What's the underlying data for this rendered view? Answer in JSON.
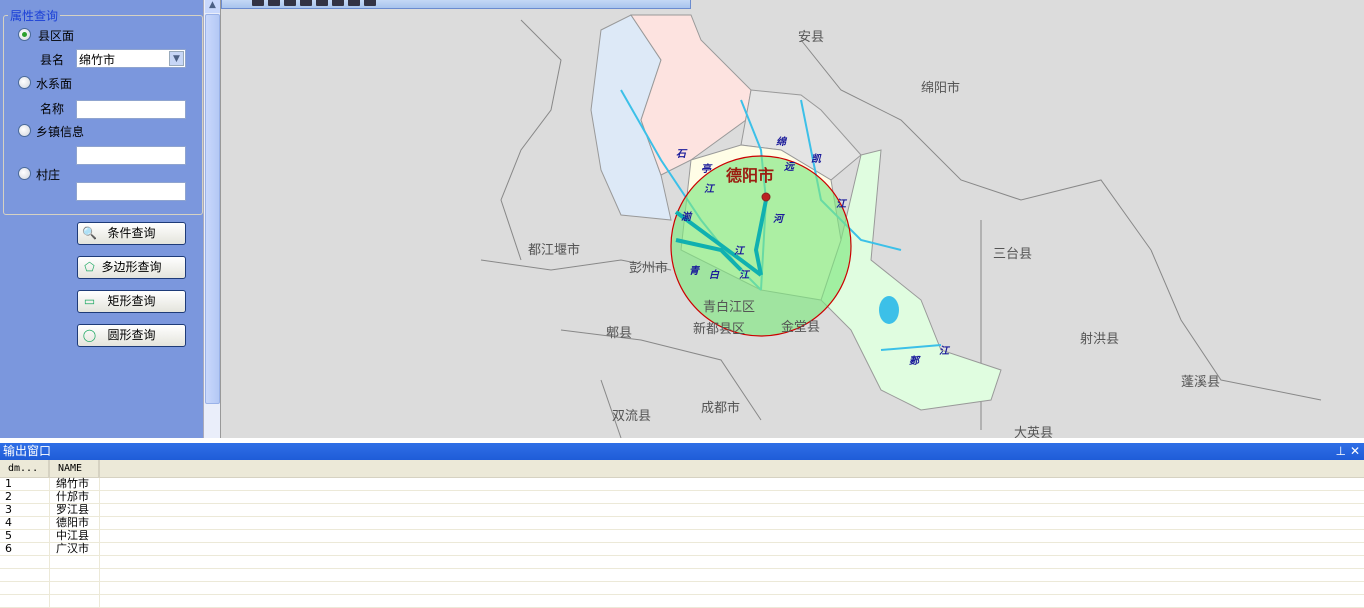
{
  "query_panel": {
    "group_title": "属性查询",
    "options": [
      {
        "label": "县区面",
        "selected": true
      },
      {
        "label": "水系面",
        "selected": false
      },
      {
        "label": "乡镇信息",
        "selected": false
      },
      {
        "label": "村庄",
        "selected": false
      }
    ],
    "county_label": "县名",
    "county_value": "绵竹市",
    "name_label": "名称",
    "name_value": "",
    "town_value": "",
    "village_value": "",
    "buttons": [
      {
        "label": "条件查询",
        "icon": "magnifier-icon"
      },
      {
        "label": "多边形查询",
        "icon": "polygon-select-icon"
      },
      {
        "label": "矩形查询",
        "icon": "rectangle-select-icon"
      },
      {
        "label": "圆形查询",
        "icon": "circle-select-icon"
      }
    ]
  },
  "map": {
    "labels": [
      "安县",
      "绵阳市",
      "都江堰市",
      "彭州市",
      "青白江区",
      "郫县",
      "新都县区",
      "金堂县",
      "三台县",
      "射洪县",
      "蓬溪县",
      "双流县",
      "成都市",
      "大英县"
    ],
    "city_label": "德阳市",
    "rivers": [
      "石",
      "亭",
      "江",
      "绵",
      "远",
      "河",
      "凯",
      "江",
      "湔",
      "江",
      "青",
      "白",
      "江",
      "郪",
      "江"
    ],
    "colors": {
      "query_circle": "#7fe87f",
      "circle_border": "#cc0000",
      "background": "#dcdcdc"
    }
  },
  "output": {
    "title": "输出窗口",
    "pin": "📌",
    "close": "✕",
    "columns": [
      "dm...",
      "NAME"
    ],
    "rows": [
      [
        "1",
        "绵竹市"
      ],
      [
        "2",
        "什邡市"
      ],
      [
        "3",
        "罗江县"
      ],
      [
        "4",
        "德阳市"
      ],
      [
        "5",
        "中江县"
      ],
      [
        "6",
        "广汉市"
      ]
    ]
  }
}
